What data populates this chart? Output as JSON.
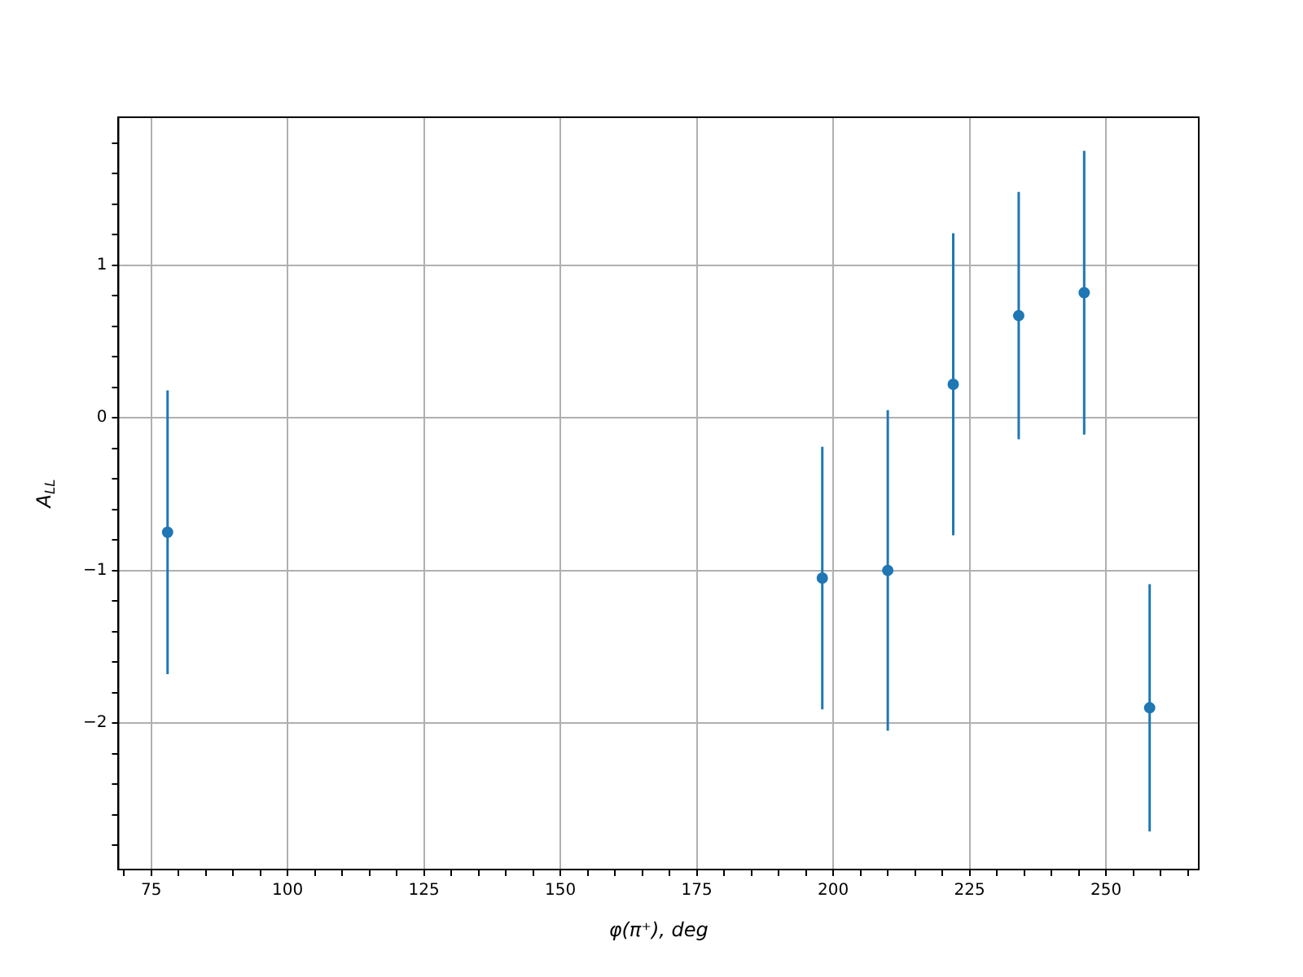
{
  "chart_data": {
    "type": "scatter",
    "xlabel": "φ(π⁺), deg",
    "ylabel": "A$_{LL}$",
    "x": [
      78,
      198,
      210,
      222,
      234,
      246,
      258
    ],
    "series": [
      {
        "color": "#1f77b4",
        "values": [
          -0.75,
          -1.05,
          -1.0,
          0.22,
          0.67,
          0.82,
          -1.9
        ],
        "errors": [
          0.93,
          0.86,
          1.05,
          0.99,
          0.81,
          0.93,
          0.81
        ]
      }
    ],
    "xlim": [
      69,
      267
    ],
    "ylim": [
      -2.96,
      1.97
    ],
    "xticks": [
      {
        "value": 70,
        "label": null
      },
      75,
      {
        "value": 80,
        "label": null
      },
      {
        "value": 85,
        "label": null
      },
      {
        "value": 90,
        "label": null
      },
      {
        "value": 95,
        "label": null
      },
      100,
      {
        "value": 105,
        "label": null
      },
      {
        "value": 110,
        "label": null
      },
      {
        "value": 115,
        "label": null
      },
      {
        "value": 120,
        "label": null
      },
      125,
      {
        "value": 130,
        "label": null
      },
      {
        "value": 135,
        "label": null
      },
      {
        "value": 140,
        "label": null
      },
      {
        "value": 145,
        "label": null
      },
      150,
      {
        "value": 155,
        "label": null
      },
      {
        "value": 160,
        "label": null
      },
      {
        "value": 165,
        "label": null
      },
      {
        "value": 170,
        "label": null
      },
      175,
      {
        "value": 180,
        "label": null
      },
      {
        "value": 185,
        "label": null
      },
      {
        "value": 190,
        "label": null
      },
      {
        "value": 195,
        "label": null
      },
      200,
      {
        "value": 205,
        "label": null
      },
      {
        "value": 210,
        "label": null
      },
      {
        "value": 215,
        "label": null
      },
      {
        "value": 220,
        "label": null
      },
      225,
      {
        "value": 230,
        "label": null
      },
      {
        "value": 235,
        "label": null
      },
      {
        "value": 240,
        "label": null
      },
      {
        "value": 245,
        "label": null
      },
      250,
      {
        "value": 255,
        "label": null
      },
      {
        "value": 260,
        "label": null
      },
      {
        "value": 265,
        "label": null
      }
    ],
    "yticks": [
      {
        "value": -2.8,
        "label": null
      },
      {
        "value": -2.6,
        "label": null
      },
      {
        "value": -2.4,
        "label": null
      },
      {
        "value": -2.2,
        "label": null
      },
      {
        "value": -2,
        "label": "−2"
      },
      {
        "value": -1.8,
        "label": null
      },
      {
        "value": -1.6,
        "label": null
      },
      {
        "value": -1.4,
        "label": null
      },
      {
        "value": -1.2,
        "label": null
      },
      {
        "value": -1,
        "label": "−1"
      },
      {
        "value": -0.8,
        "label": null
      },
      {
        "value": -0.6,
        "label": null
      },
      {
        "value": -0.4,
        "label": null
      },
      {
        "value": -0.2,
        "label": null
      },
      0,
      {
        "value": 0.2,
        "label": null
      },
      {
        "value": 0.4,
        "label": null
      },
      {
        "value": 0.6,
        "label": null
      },
      {
        "value": 0.8,
        "label": null
      },
      1,
      {
        "value": 1.2,
        "label": null
      },
      {
        "value": 1.4,
        "label": null
      },
      {
        "value": 1.6,
        "label": null
      },
      {
        "value": 1.8,
        "label": null
      }
    ],
    "grid": true,
    "marker": "circle"
  }
}
